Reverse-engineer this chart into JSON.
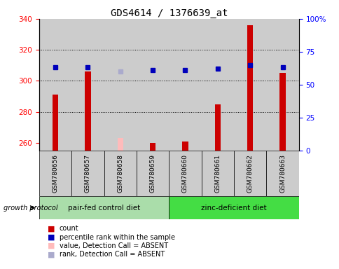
{
  "title": "GDS4614 / 1376639_at",
  "samples": [
    "GSM780656",
    "GSM780657",
    "GSM780658",
    "GSM780659",
    "GSM780660",
    "GSM780661",
    "GSM780662",
    "GSM780663"
  ],
  "count_values": [
    291,
    306,
    null,
    260,
    261,
    285,
    336,
    305
  ],
  "count_absent_values": [
    null,
    null,
    263,
    null,
    null,
    null,
    null,
    null
  ],
  "rank_values": [
    309,
    309,
    null,
    307,
    307,
    308,
    310,
    309
  ],
  "rank_absent_values": [
    null,
    null,
    306,
    null,
    null,
    null,
    null,
    null
  ],
  "ylim_left": [
    255,
    340
  ],
  "ylim_right": [
    0,
    100
  ],
  "yticks_left": [
    260,
    280,
    300,
    320,
    340
  ],
  "yticks_right": [
    0,
    25,
    50,
    75,
    100
  ],
  "ytick_right_labels": [
    "0",
    "25",
    "50",
    "75",
    "100%"
  ],
  "groups": [
    {
      "label": "pair-fed control diet",
      "indices": [
        0,
        1,
        2,
        3
      ],
      "color": "#aaddaa"
    },
    {
      "label": "zinc-deficient diet",
      "indices": [
        4,
        5,
        6,
        7
      ],
      "color": "#44dd44"
    }
  ],
  "group_label": "growth protocol",
  "bar_color": "#cc0000",
  "bar_absent_color": "#ffbbbb",
  "rank_color": "#0000bb",
  "rank_absent_color": "#aaaacc",
  "col_bg_color": "#cccccc",
  "plot_bg": "#ffffff",
  "bar_width": 0.18,
  "legend_items": [
    {
      "color": "#cc0000",
      "label": "count"
    },
    {
      "color": "#0000bb",
      "label": "percentile rank within the sample"
    },
    {
      "color": "#ffbbbb",
      "label": "value, Detection Call = ABSENT"
    },
    {
      "color": "#aaaacc",
      "label": "rank, Detection Call = ABSENT"
    }
  ]
}
